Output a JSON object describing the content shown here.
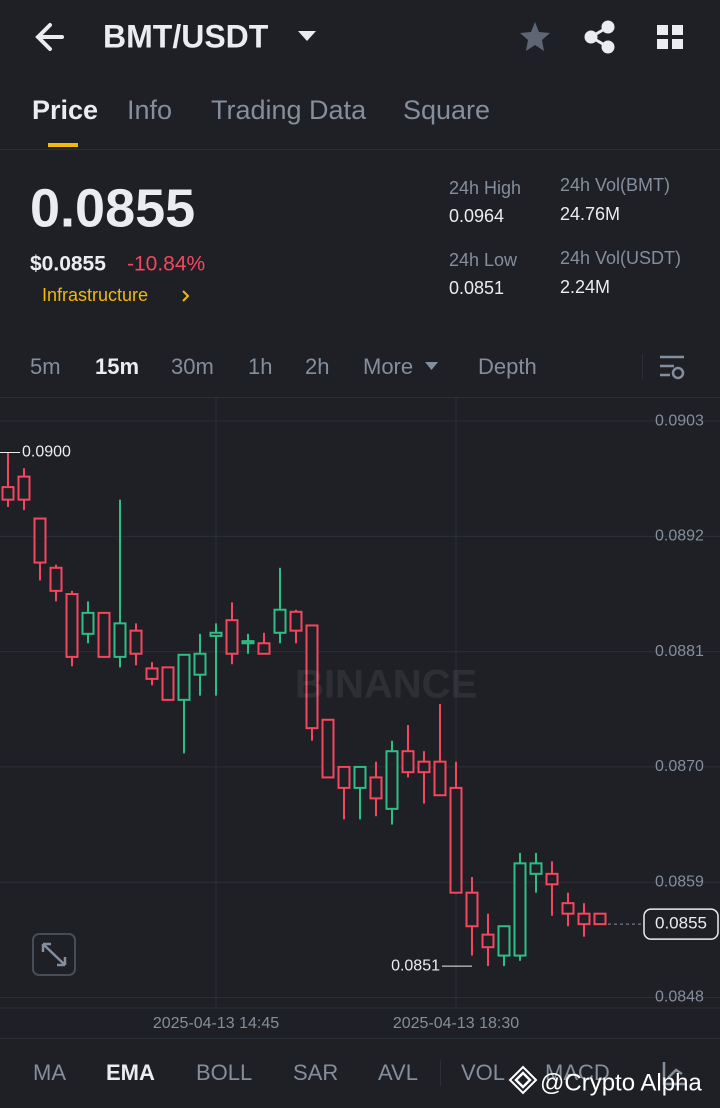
{
  "header": {
    "pair": "BMT/USDT"
  },
  "tabs": [
    "Price",
    "Info",
    "Trading Data",
    "Square"
  ],
  "price": {
    "last": "0.0855",
    "usd": "$0.0855",
    "change": "-10.84%",
    "sector": "Infrastructure"
  },
  "stats": [
    {
      "label": "24h High",
      "value": "0.0964"
    },
    {
      "label": "24h Low",
      "value": "0.0851"
    },
    {
      "label": "24h Vol(BMT)",
      "value": "24.76M"
    },
    {
      "label": "24h Vol(USDT)",
      "value": "2.24M"
    }
  ],
  "intervals": [
    "5m",
    "15m",
    "30m",
    "1h",
    "2h"
  ],
  "more": "More",
  "depth": "Depth",
  "indicators": [
    "MA",
    "EMA",
    "BOLL",
    "SAR",
    "AVL",
    "VOL",
    "MACD"
  ],
  "watermark": "BINANCE",
  "credit": "@Crypto Alpha",
  "chart_data": {
    "type": "candlestick",
    "categories": [
      null,
      null,
      null,
      null,
      null,
      null,
      null,
      null,
      null,
      null,
      null,
      null,
      null,
      "2025-04-13 14:45",
      null,
      null,
      null,
      null,
      null,
      null,
      null,
      null,
      null,
      null,
      null,
      null,
      null,
      null,
      "2025-04-13 18:30",
      null,
      null,
      null,
      null,
      null,
      null,
      null,
      null,
      null
    ],
    "open": [
      0.08967,
      0.08977,
      0.08937,
      0.0889,
      0.08865,
      0.08827,
      0.08847,
      0.08805,
      0.0883,
      0.08794,
      0.08795,
      0.08764,
      0.08788,
      0.08825,
      0.0884,
      0.08818,
      0.08818,
      0.08828,
      0.08848,
      0.08835,
      0.08745,
      0.087,
      0.0868,
      0.0869,
      0.0866,
      0.08715,
      0.08705,
      0.08705,
      0.0868,
      0.0858,
      0.0854,
      0.0852,
      0.0852,
      0.08598,
      0.08598,
      0.0857,
      0.0856,
      0.0856
    ],
    "high": [
      0.09,
      0.08985,
      0.08937,
      0.08893,
      0.08868,
      0.08858,
      0.08847,
      0.08955,
      0.08837,
      0.088,
      0.08795,
      0.08807,
      0.08827,
      0.08837,
      0.08857,
      0.08827,
      0.08828,
      0.0889,
      0.0885,
      0.08835,
      0.08745,
      0.087,
      0.087,
      0.08705,
      0.08725,
      0.0874,
      0.08715,
      0.0876,
      0.08705,
      0.08595,
      0.0856,
      0.08548,
      0.08618,
      0.08618,
      0.0861,
      0.0858,
      0.0857,
      0.0856
    ],
    "low": [
      0.08948,
      0.08945,
      0.08878,
      0.08858,
      0.08796,
      0.08818,
      0.08805,
      0.08795,
      0.08797,
      0.08778,
      0.08764,
      0.08713,
      0.08768,
      0.08768,
      0.08798,
      0.08808,
      0.08808,
      0.08818,
      0.08818,
      0.08725,
      0.0869,
      0.0865,
      0.0865,
      0.08653,
      0.08645,
      0.0869,
      0.08665,
      0.08673,
      0.0858,
      0.0852,
      0.0851,
      0.0851,
      0.08515,
      0.0858,
      0.08558,
      0.08548,
      0.08538,
      0.0855
    ],
    "close": [
      0.08955,
      0.08955,
      0.08895,
      0.08868,
      0.08805,
      0.08847,
      0.08805,
      0.08837,
      0.08808,
      0.08784,
      0.08764,
      0.08807,
      0.08808,
      0.08828,
      0.08808,
      0.0882,
      0.08808,
      0.0885,
      0.0883,
      0.08737,
      0.0869,
      0.0868,
      0.087,
      0.0867,
      0.08715,
      0.08695,
      0.08695,
      0.08673,
      0.0858,
      0.08548,
      0.08528,
      0.08548,
      0.08608,
      0.08608,
      0.08588,
      0.0856,
      0.0855,
      0.0855
    ],
    "up_color": "#2ebd85",
    "down_color": "#f6465d",
    "ylim": [
      0.0847,
      0.09052
    ],
    "yticks": [
      0.0903,
      0.0892,
      0.0881,
      {
        "value": 0.087,
        "label": "0.0870"
      },
      0.0859,
      0.0848
    ],
    "grid": true,
    "annotations": [
      {
        "label": "0.0900",
        "value": 0.09
      },
      {
        "label": "0.0851",
        "value": 0.0851
      },
      {
        "label": "0.0855",
        "value": 0.0855
      }
    ]
  }
}
